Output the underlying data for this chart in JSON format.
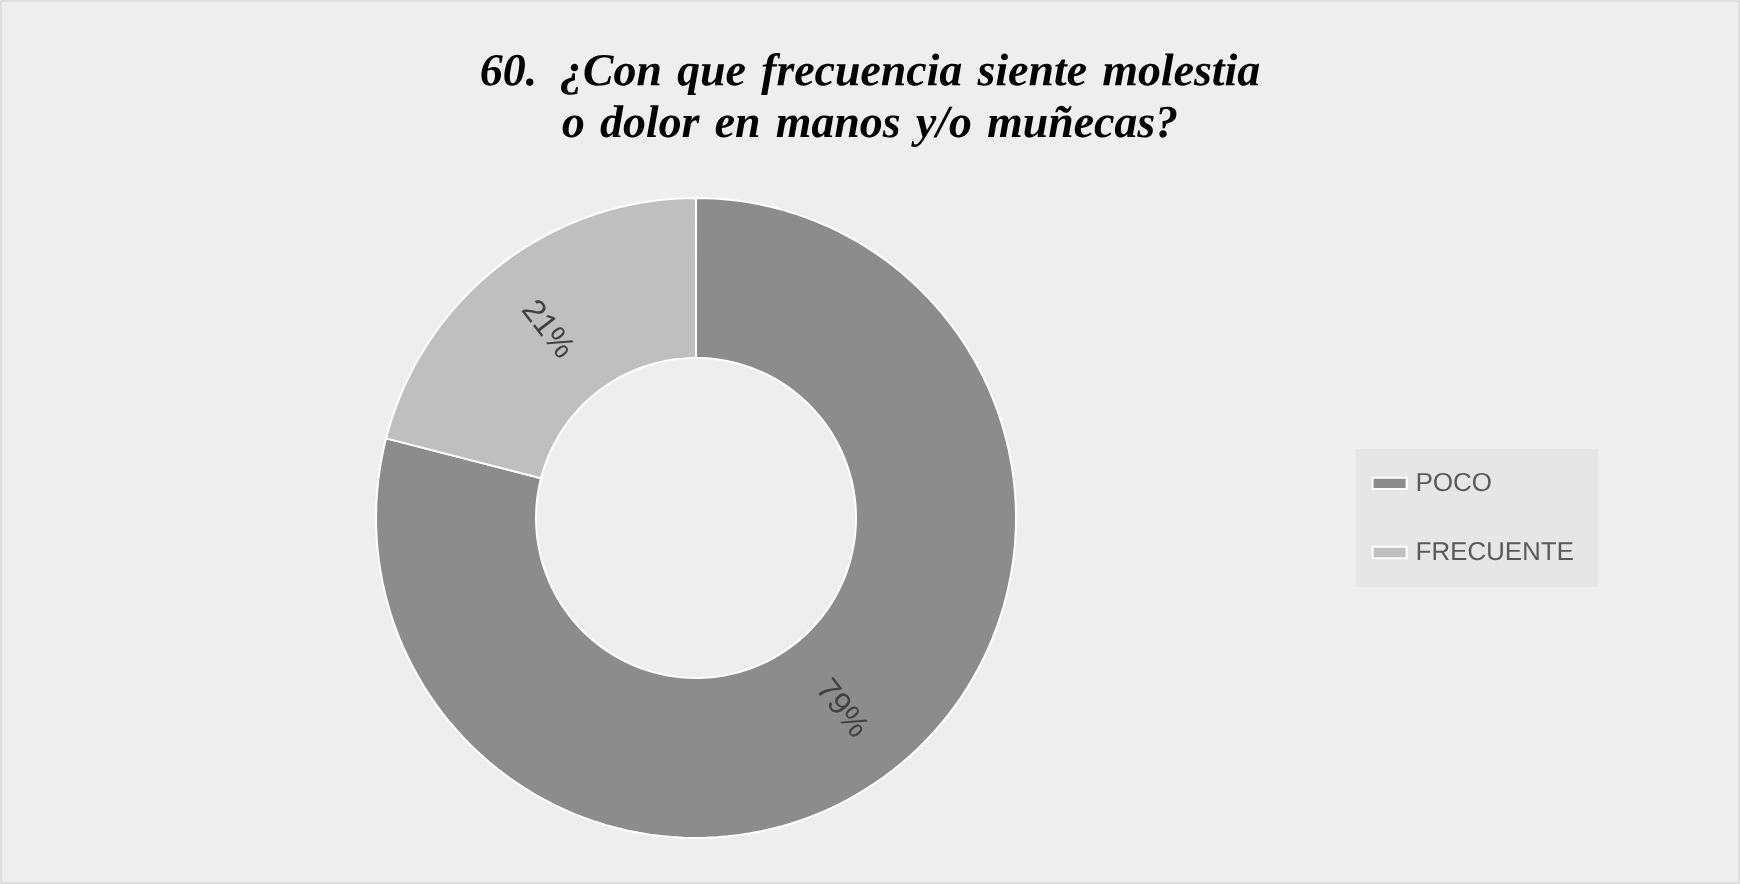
{
  "chart_data": {
    "type": "donut",
    "title": "60. ¿Con que frecuencia siente molestia o dolor en manos y/o muñecas?",
    "categories": [
      "POCO",
      "FRECUENTE"
    ],
    "values": [
      79,
      21
    ],
    "value_labels": [
      "79%",
      "21%"
    ],
    "colors": [
      "#8c8c8c",
      "#bfbfbf"
    ],
    "legend": "right"
  }
}
